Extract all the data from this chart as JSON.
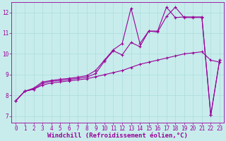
{
  "xlabel": "Windchill (Refroidissement éolien,°C)",
  "bg_color": "#c8ecec",
  "line_color": "#990099",
  "grid_color": "#aadddd",
  "xlim": [
    -0.5,
    23.5
  ],
  "ylim": [
    6.7,
    12.5
  ],
  "xticks": [
    0,
    1,
    2,
    3,
    4,
    5,
    6,
    7,
    8,
    9,
    10,
    11,
    12,
    13,
    14,
    15,
    16,
    17,
    18,
    19,
    20,
    21,
    22,
    23
  ],
  "yticks": [
    7,
    8,
    9,
    10,
    11,
    12
  ],
  "series1_x": [
    0,
    1,
    2,
    3,
    4,
    5,
    6,
    7,
    8,
    9,
    10,
    11,
    12,
    13,
    14,
    15,
    16,
    17,
    18,
    19,
    20,
    21,
    22,
    23
  ],
  "series1_y": [
    7.75,
    8.2,
    8.3,
    8.5,
    8.6,
    8.65,
    8.7,
    8.75,
    8.8,
    8.9,
    9.0,
    9.1,
    9.2,
    9.35,
    9.5,
    9.6,
    9.7,
    9.8,
    9.9,
    10.0,
    10.05,
    10.1,
    9.7,
    9.6
  ],
  "series2_x": [
    0,
    1,
    2,
    3,
    4,
    5,
    6,
    7,
    8,
    9,
    10,
    11,
    12,
    13,
    14,
    15,
    16,
    17,
    18,
    19,
    20,
    21,
    22,
    23
  ],
  "series2_y": [
    7.75,
    8.2,
    8.35,
    8.65,
    8.72,
    8.78,
    8.82,
    8.88,
    8.95,
    9.2,
    9.7,
    10.2,
    10.5,
    12.2,
    10.5,
    11.1,
    11.1,
    12.25,
    11.75,
    11.78,
    11.78,
    11.78,
    7.05,
    9.7
  ],
  "series3_x": [
    0,
    1,
    2,
    3,
    4,
    5,
    6,
    7,
    8,
    9,
    10,
    11,
    12,
    13,
    14,
    15,
    16,
    17,
    18,
    19,
    20,
    21,
    22,
    23
  ],
  "series3_y": [
    7.75,
    8.2,
    8.3,
    8.58,
    8.68,
    8.72,
    8.77,
    8.82,
    8.88,
    9.05,
    9.65,
    10.15,
    9.95,
    10.55,
    10.35,
    11.1,
    11.05,
    11.8,
    12.25,
    11.75,
    11.75,
    11.75,
    7.05,
    9.7
  ],
  "marker": "+",
  "markersize": 3,
  "linewidth": 0.8,
  "xlabel_fontsize": 6.5,
  "tick_fontsize": 5.5
}
